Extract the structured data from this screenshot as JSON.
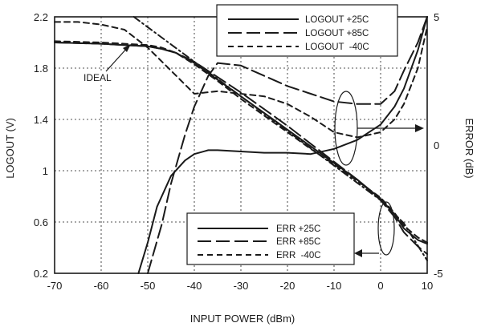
{
  "chart_data": {
    "type": "line",
    "xlabel": "INPUT POWER (dBm)",
    "ylabel_left": "LOGOUT (V)",
    "ylabel_right": "ERROR (dB)",
    "xlim": [
      -70,
      10
    ],
    "ylim_left": [
      0.2,
      2.2
    ],
    "ylim_right": [
      -5,
      5
    ],
    "xticks": [
      "-70",
      "-60",
      "-50",
      "-40",
      "-30",
      "-20",
      "-10",
      "0",
      "10"
    ],
    "yticks_left": [
      "0.2",
      "0.6",
      "1",
      "1.4",
      "1.8",
      "2.2"
    ],
    "yticks_right": [
      "-5",
      "0",
      "5"
    ],
    "grid": true,
    "annotation": "IDEAL",
    "logout_series": [
      {
        "name": "LOGOUT +25C",
        "dash": "solid",
        "x": [
          -70,
          -60,
          -55,
          -50,
          -47,
          -44,
          -40,
          -35,
          -30,
          -25,
          -20,
          -15,
          -10,
          -5,
          0,
          3,
          5,
          8,
          10
        ],
        "y": [
          2.0,
          1.99,
          1.98,
          1.97,
          1.95,
          1.92,
          1.84,
          1.71,
          1.58,
          1.45,
          1.32,
          1.19,
          1.06,
          0.93,
          0.78,
          0.66,
          0.55,
          0.46,
          0.43
        ]
      },
      {
        "name": "LOGOUT +85C",
        "dash": "long",
        "x": [
          -70,
          -60,
          -55,
          -50,
          -47,
          -44,
          -40,
          -35,
          -30,
          -25,
          -20,
          -15,
          -10,
          -5,
          0,
          3,
          5,
          8,
          10
        ],
        "y": [
          2.0,
          1.99,
          1.98,
          1.97,
          1.95,
          1.92,
          1.85,
          1.73,
          1.61,
          1.48,
          1.35,
          1.21,
          1.07,
          0.93,
          0.77,
          0.64,
          0.52,
          0.41,
          0.35
        ]
      },
      {
        "name": "LOGOUT -40C",
        "dash": "short",
        "x": [
          -70,
          -60,
          -55,
          -50,
          -47,
          -44,
          -40,
          -35,
          -30,
          -25,
          -20,
          -15,
          -10,
          -5,
          0,
          3,
          5,
          8,
          10
        ],
        "y": [
          2.01,
          2.0,
          1.99,
          1.98,
          1.96,
          1.92,
          1.83,
          1.7,
          1.56,
          1.43,
          1.3,
          1.17,
          1.05,
          0.92,
          0.79,
          0.67,
          0.57,
          0.48,
          0.44
        ]
      }
    ],
    "ideal_line": {
      "name": "IDEAL",
      "x": [
        -53,
        -45,
        -40,
        -30,
        -20,
        -10,
        0,
        5,
        10
      ],
      "y": [
        2.2,
        1.985,
        1.85,
        1.58,
        1.31,
        1.04,
        0.77,
        0.59,
        0.3
      ]
    },
    "err_series": [
      {
        "name": "ERR +25C",
        "dash": "solid",
        "x": [
          -52,
          -50,
          -48,
          -45,
          -42,
          -40,
          -37,
          -35,
          -30,
          -25,
          -20,
          -15,
          -10,
          -5,
          0,
          3,
          5,
          8,
          10
        ],
        "y": [
          -5,
          -3.8,
          -2.4,
          -1.2,
          -0.6,
          -0.35,
          -0.2,
          -0.2,
          -0.25,
          -0.3,
          -0.3,
          -0.35,
          -0.15,
          0.2,
          0.8,
          1.5,
          2.2,
          3.7,
          5
        ]
      },
      {
        "name": "ERR +85C",
        "dash": "long",
        "x": [
          -50,
          -47,
          -45,
          -42,
          -40,
          -37,
          -35,
          -30,
          -25,
          -20,
          -15,
          -10,
          -5,
          0,
          3,
          5,
          8,
          10
        ],
        "y": [
          -5,
          -3.1,
          -1.5,
          0.4,
          1.5,
          2.7,
          3.2,
          3.1,
          2.7,
          2.3,
          2.0,
          1.7,
          1.6,
          1.6,
          2.1,
          2.9,
          4.0,
          5
        ]
      },
      {
        "name": "ERR -40C",
        "dash": "short",
        "x": [
          -70,
          -65,
          -60,
          -55,
          -50,
          -45,
          -40,
          -35,
          -30,
          -25,
          -20,
          -15,
          -10,
          -5,
          0,
          3,
          5,
          8,
          10
        ],
        "y": [
          4.8,
          4.8,
          4.7,
          4.5,
          3.8,
          2.9,
          2.0,
          2.1,
          2.0,
          1.9,
          1.6,
          1.1,
          0.5,
          0.3,
          0.5,
          1.0,
          1.6,
          3.0,
          4.6
        ]
      }
    ],
    "legend_logout": [
      "LOGOUT +25C",
      "LOGOUT +85C",
      "LOGOUT  -40C"
    ],
    "legend_err": [
      "ERR +25C",
      "ERR +85C",
      "ERR  -40C"
    ]
  }
}
